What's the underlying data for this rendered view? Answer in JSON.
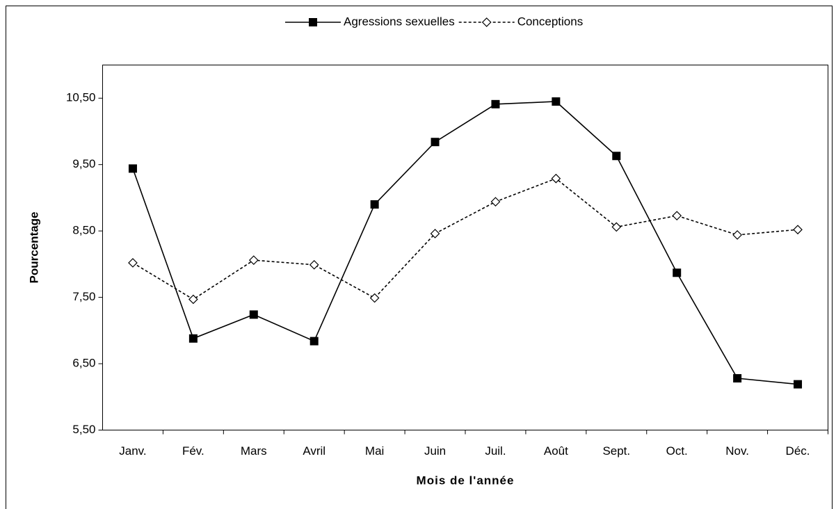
{
  "chart_data": {
    "type": "line",
    "xlabel": "Mois de l'année",
    "ylabel": "Pourcentage",
    "categories": [
      "Janv.",
      "Fév.",
      "Mars",
      "Avril",
      "Mai",
      "Juin",
      "Juil.",
      "Août",
      "Sept.",
      "Oct.",
      "Nov.",
      "Déc."
    ],
    "series": [
      {
        "name": "Agressions sexuelles",
        "color": "#000000",
        "dash": false,
        "marker": "square",
        "values": [
          9.44,
          6.88,
          7.24,
          6.84,
          8.9,
          9.84,
          10.41,
          10.45,
          9.63,
          7.87,
          6.28,
          6.19
        ]
      },
      {
        "name": "Conceptions",
        "color": "#000000",
        "dash": true,
        "marker": "diamond",
        "values": [
          8.02,
          7.47,
          8.06,
          7.99,
          7.49,
          8.46,
          8.94,
          9.29,
          8.56,
          8.73,
          8.44,
          8.52
        ]
      }
    ],
    "ylim": [
      5.5,
      11
    ],
    "yticks": [
      {
        "value": 5.5,
        "label": "5,50"
      },
      {
        "value": 6.5,
        "label": "6,50"
      },
      {
        "value": 7.5,
        "label": "7,50"
      },
      {
        "value": 8.5,
        "label": "8,50"
      },
      {
        "value": 9.5,
        "label": "9,50"
      },
      {
        "value": 10.5,
        "label": "10,50"
      }
    ],
    "grid": false,
    "legend": "top"
  }
}
